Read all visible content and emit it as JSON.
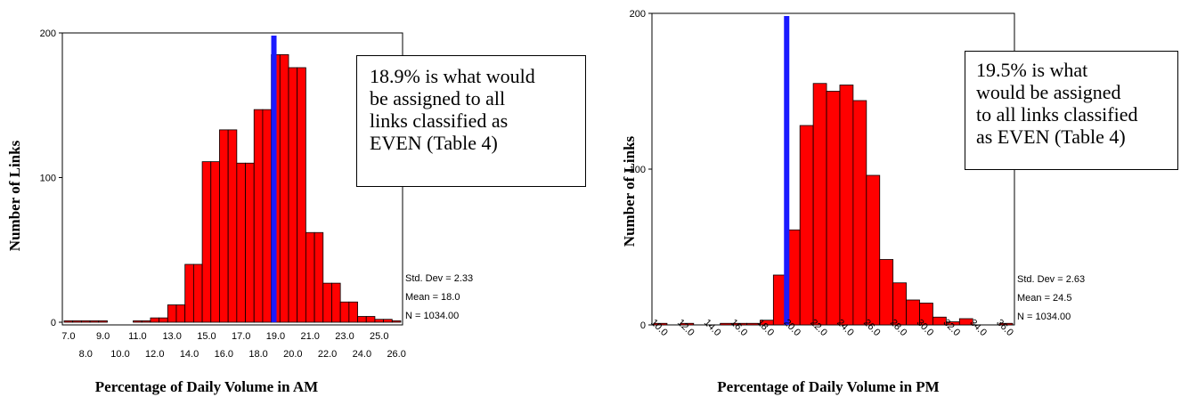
{
  "colors": {
    "bar_fill": "#ff0000",
    "bar_stroke": "#000000",
    "marker_line": "#1a1aff",
    "axis": "#000000"
  },
  "chart_data": [
    {
      "type": "bar",
      "xlabel": "Percentage of Daily Volume in AM",
      "ylabel": "Number of Links",
      "ylim": [
        0,
        200
      ],
      "yticks": [
        "0",
        "100",
        "200"
      ],
      "xticks_row1": [
        "7.0",
        "9.0",
        "11.0",
        "13.0",
        "15.0",
        "17.0",
        "19.0",
        "21.0",
        "23.0",
        "25.0"
      ],
      "xticks_row2": [
        "8.0",
        "10.0",
        "12.0",
        "14.0",
        "16.0",
        "18.0",
        "20.0",
        "22.0",
        "24.0",
        "26.0"
      ],
      "x": [
        7.0,
        7.5,
        8.0,
        8.5,
        9.0,
        9.5,
        10.0,
        10.5,
        11.0,
        11.5,
        12.0,
        12.5,
        13.0,
        13.5,
        14.0,
        14.5,
        15.0,
        15.5,
        16.0,
        16.5,
        17.0,
        17.5,
        18.0,
        18.5,
        19.0,
        19.5,
        20.0,
        20.5,
        21.0,
        21.5,
        22.0,
        22.5,
        23.0,
        23.5,
        24.0,
        24.5,
        25.0,
        25.5,
        26.0
      ],
      "values": [
        1,
        1,
        1,
        1,
        1,
        0,
        0,
        0,
        1,
        1,
        3,
        3,
        12,
        12,
        40,
        40,
        111,
        111,
        133,
        133,
        110,
        110,
        147,
        147,
        185,
        185,
        176,
        176,
        62,
        62,
        27,
        27,
        14,
        14,
        4,
        4,
        2,
        2,
        1
      ],
      "marker": {
        "x": 18.9,
        "label": "18.9% is what would be assigned to all links classified as EVEN (Table 4)"
      },
      "annotation_lines": [
        "18.9% is what would",
        "be assigned to all",
        "links classified as",
        "EVEN (Table 4)"
      ],
      "stats": [
        "Std. Dev = 2.33",
        "Mean = 18.0",
        "N = 1034.00"
      ]
    },
    {
      "type": "bar",
      "xlabel": "Percentage of Daily Volume in PM",
      "ylabel": "Number of Links",
      "ylim": [
        0,
        200
      ],
      "yticks": [
        "0",
        "100",
        "200"
      ],
      "xticks": [
        "10.0",
        "12.0",
        "14.0",
        "16.0",
        "18.0",
        "20.0",
        "22.0",
        "24.0",
        "26.0",
        "28.0",
        "30.0",
        "32.0",
        "34.0",
        "36.0"
      ],
      "x": [
        10,
        11,
        12,
        13,
        14,
        15,
        16,
        17,
        18,
        19,
        20,
        21,
        22,
        23,
        24,
        25,
        26,
        27,
        28,
        29,
        30,
        31,
        32,
        33,
        34,
        35,
        36
      ],
      "values": [
        1,
        0,
        1,
        0,
        0,
        1,
        1,
        1,
        3,
        32,
        61,
        128,
        155,
        150,
        154,
        144,
        96,
        42,
        27,
        16,
        14,
        5,
        2,
        4,
        0,
        0,
        1
      ],
      "marker": {
        "x": 19.5,
        "label": "19.5% is what would be assigned to all links classified as EVEN (Table 4)"
      },
      "annotation_lines": [
        "19.5% is what",
        "would be assigned",
        "to all links classified",
        "as EVEN (Table 4)"
      ],
      "stats": [
        "Std. Dev = 2.63",
        "Mean = 24.5",
        "N = 1034.00"
      ]
    }
  ]
}
